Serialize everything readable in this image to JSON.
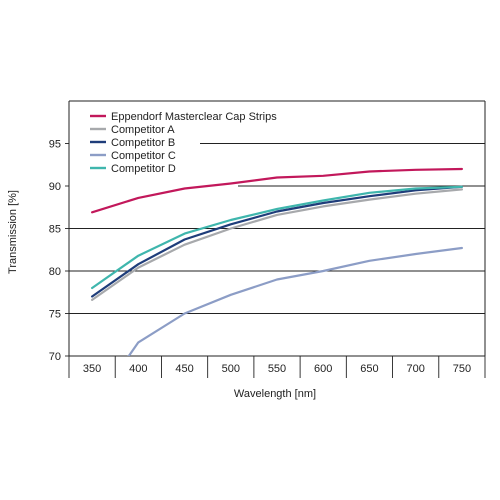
{
  "chart_data": {
    "type": "line",
    "xlabel": "Wavelength [nm]",
    "ylabel": "Transmission [%]",
    "xlim": [
      325,
      775
    ],
    "ylim": [
      70,
      100
    ],
    "x_ticks": [
      350,
      400,
      450,
      500,
      550,
      600,
      650,
      700,
      750
    ],
    "y_ticks": [
      70,
      75,
      80,
      85,
      90,
      95
    ],
    "grid": "horizontal",
    "legend_position": "top-left",
    "x": [
      350,
      400,
      450,
      500,
      550,
      600,
      650,
      700,
      750
    ],
    "series": [
      {
        "name": "Eppendorf Masterclear Cap Strips",
        "color": "#c2185b",
        "values": [
          86.9,
          88.6,
          89.7,
          90.3,
          91.0,
          91.2,
          91.7,
          91.9,
          92.0
        ]
      },
      {
        "name": "Competitor A",
        "color": "#a7a9ac",
        "values": [
          76.6,
          80.4,
          83.1,
          85.0,
          86.6,
          87.6,
          88.4,
          89.1,
          89.6
        ]
      },
      {
        "name": "Competitor B",
        "color": "#1f3d7a",
        "values": [
          77.0,
          80.8,
          83.7,
          85.5,
          87.0,
          88.0,
          88.8,
          89.5,
          89.9
        ]
      },
      {
        "name": "Competitor C",
        "color": "#8c9dc6",
        "values": [
          null,
          71.6,
          75.0,
          77.2,
          79.0,
          80.0,
          81.2,
          82.0,
          82.7
        ]
      },
      {
        "name": "Competitor D",
        "color": "#3fb6ad",
        "values": [
          78.0,
          81.8,
          84.4,
          86.0,
          87.3,
          88.3,
          89.2,
          89.7,
          89.9
        ]
      }
    ]
  }
}
